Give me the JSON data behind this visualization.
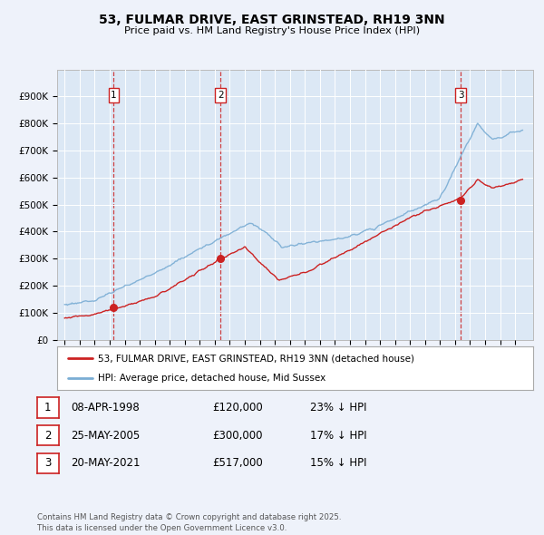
{
  "title": "53, FULMAR DRIVE, EAST GRINSTEAD, RH19 3NN",
  "subtitle": "Price paid vs. HM Land Registry's House Price Index (HPI)",
  "background_color": "#eef2fa",
  "plot_bg_color": "#dce8f5",
  "sale_dates": [
    1998.27,
    2005.38,
    2021.38
  ],
  "sale_prices": [
    120000,
    300000,
    517000
  ],
  "sale_labels": [
    "1",
    "2",
    "3"
  ],
  "legend_line1": "53, FULMAR DRIVE, EAST GRINSTEAD, RH19 3NN (detached house)",
  "legend_line2": "HPI: Average price, detached house, Mid Sussex",
  "table": [
    [
      "1",
      "08-APR-1998",
      "£120,000",
      "23% ↓ HPI"
    ],
    [
      "2",
      "25-MAY-2005",
      "£300,000",
      "17% ↓ HPI"
    ],
    [
      "3",
      "20-MAY-2021",
      "£517,000",
      "15% ↓ HPI"
    ]
  ],
  "footer": "Contains HM Land Registry data © Crown copyright and database right 2025.\nThis data is licensed under the Open Government Licence v3.0.",
  "ylim": [
    0,
    1000000
  ],
  "yticks": [
    0,
    100000,
    200000,
    300000,
    400000,
    500000,
    600000,
    700000,
    800000,
    900000
  ],
  "line_color_red": "#cc2222",
  "line_color_blue": "#7aadd4",
  "vline_color": "#cc2222",
  "grid_color": "#ffffff",
  "xmin": 1994.5,
  "xmax": 2026.2
}
